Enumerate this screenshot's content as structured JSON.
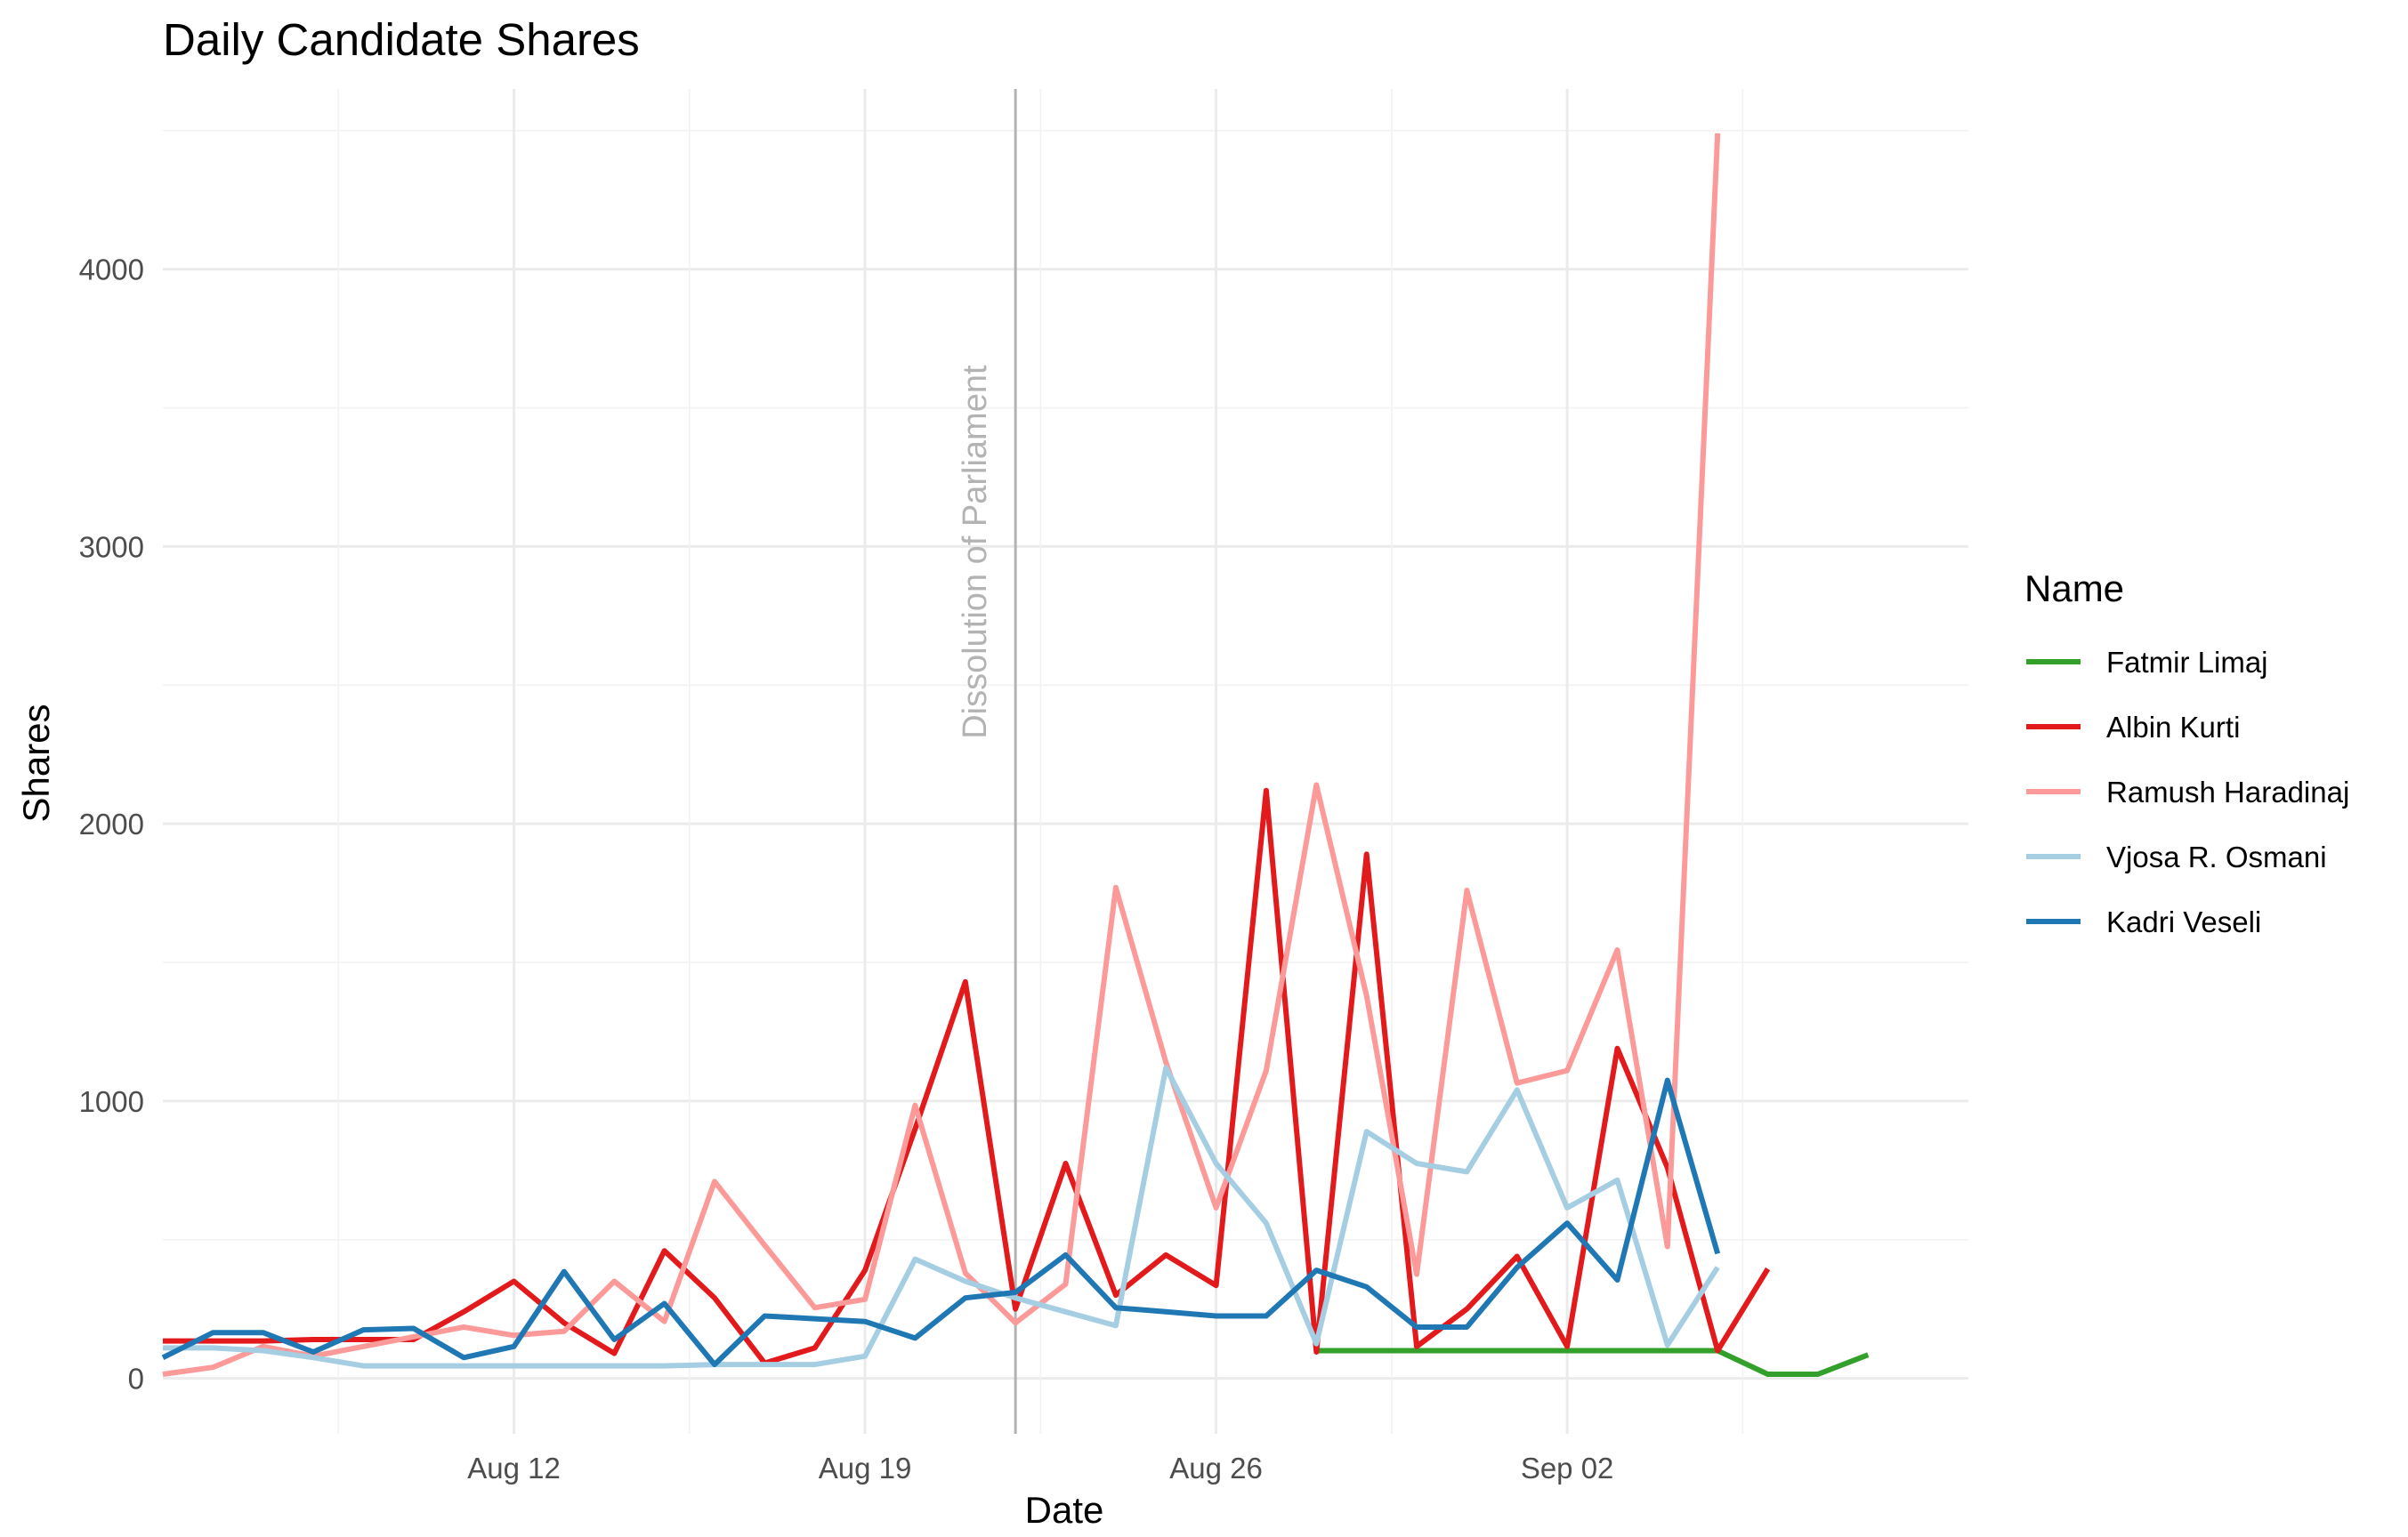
{
  "chart_data": {
    "type": "line",
    "title": "Daily Candidate Shares",
    "xlabel": "Date",
    "ylabel": "Shares",
    "legend_title": "Name",
    "legend_position": "right",
    "grid": true,
    "x_axis": {
      "type": "date",
      "range": [
        "2019-08-05",
        "2019-09-10"
      ],
      "ticks": [
        {
          "date": "2019-08-12",
          "label": "Aug 12"
        },
        {
          "date": "2019-08-19",
          "label": "Aug 19"
        },
        {
          "date": "2019-08-26",
          "label": "Aug 26"
        },
        {
          "date": "2019-09-02",
          "label": "Sep 02"
        }
      ]
    },
    "y_axis": {
      "range": [
        -200,
        4650
      ],
      "ticks": [
        0,
        1000,
        2000,
        3000,
        4000
      ]
    },
    "annotations": [
      {
        "type": "vline",
        "date": "2019-08-22",
        "label": "Dissolution of Parliament",
        "color": "#b3b3b3"
      }
    ],
    "series": [
      {
        "name": "Fatmir Limaj",
        "color": "#33a02c",
        "points": [
          [
            "2019-08-28",
            100
          ],
          [
            "2019-08-29",
            100
          ],
          [
            "2019-08-30",
            100
          ],
          [
            "2019-08-31",
            100
          ],
          [
            "2019-09-01",
            100
          ],
          [
            "2019-09-02",
            100
          ],
          [
            "2019-09-03",
            100
          ],
          [
            "2019-09-04",
            100
          ],
          [
            "2019-09-05",
            100
          ],
          [
            "2019-09-06",
            15
          ],
          [
            "2019-09-07",
            15
          ],
          [
            "2019-09-08",
            85
          ]
        ]
      },
      {
        "name": "Albin Kurti",
        "color": "#e31a1c",
        "points": [
          [
            "2019-08-05",
            135
          ],
          [
            "2019-08-06",
            135
          ],
          [
            "2019-08-07",
            135
          ],
          [
            "2019-08-08",
            140
          ],
          [
            "2019-08-09",
            140
          ],
          [
            "2019-08-10",
            140
          ],
          [
            "2019-08-11",
            240
          ],
          [
            "2019-08-12",
            350
          ],
          [
            "2019-08-13",
            200
          ],
          [
            "2019-08-14",
            90
          ],
          [
            "2019-08-15",
            460
          ],
          [
            "2019-08-16",
            290
          ],
          [
            "2019-08-17",
            55
          ],
          [
            "2019-08-18",
            110
          ],
          [
            "2019-08-19",
            390
          ],
          [
            "2019-08-20",
            900
          ],
          [
            "2019-08-21",
            1430
          ],
          [
            "2019-08-22",
            250
          ],
          [
            "2019-08-23",
            775
          ],
          [
            "2019-08-24",
            300
          ],
          [
            "2019-08-25",
            445
          ],
          [
            "2019-08-26",
            335
          ],
          [
            "2019-08-27",
            2120
          ],
          [
            "2019-08-28",
            95
          ],
          [
            "2019-08-29",
            1890
          ],
          [
            "2019-08-30",
            115
          ],
          [
            "2019-08-31",
            250
          ],
          [
            "2019-09-01",
            440
          ],
          [
            "2019-09-02",
            115
          ],
          [
            "2019-09-03",
            1190
          ],
          [
            "2019-09-04",
            760
          ],
          [
            "2019-09-05",
            100
          ],
          [
            "2019-09-06",
            395
          ]
        ]
      },
      {
        "name": "Ramush Haradinaj",
        "color": "#fb9a99",
        "points": [
          [
            "2019-08-05",
            15
          ],
          [
            "2019-08-06",
            40
          ],
          [
            "2019-08-07",
            115
          ],
          [
            "2019-08-08",
            80
          ],
          [
            "2019-08-09",
            115
          ],
          [
            "2019-08-10",
            150
          ],
          [
            "2019-08-11",
            185
          ],
          [
            "2019-08-12",
            155
          ],
          [
            "2019-08-13",
            170
          ],
          [
            "2019-08-14",
            350
          ],
          [
            "2019-08-15",
            205
          ],
          [
            "2019-08-16",
            710
          ],
          [
            "2019-08-17",
            480
          ],
          [
            "2019-08-18",
            255
          ],
          [
            "2019-08-19",
            285
          ],
          [
            "2019-08-20",
            985
          ],
          [
            "2019-08-21",
            380
          ],
          [
            "2019-08-22",
            200
          ],
          [
            "2019-08-23",
            340
          ],
          [
            "2019-08-24",
            1770
          ],
          [
            "2019-08-25",
            1140
          ],
          [
            "2019-08-26",
            615
          ],
          [
            "2019-08-27",
            1110
          ],
          [
            "2019-08-28",
            2140
          ],
          [
            "2019-08-29",
            1380
          ],
          [
            "2019-08-30",
            375
          ],
          [
            "2019-08-31",
            1760
          ],
          [
            "2019-09-01",
            1065
          ],
          [
            "2019-09-02",
            1110
          ],
          [
            "2019-09-03",
            1545
          ],
          [
            "2019-09-04",
            475
          ],
          [
            "2019-09-05",
            4490
          ]
        ]
      },
      {
        "name": "Vjosa R. Osmani",
        "color": "#a6cee3",
        "points": [
          [
            "2019-08-05",
            110
          ],
          [
            "2019-08-06",
            110
          ],
          [
            "2019-08-07",
            100
          ],
          [
            "2019-08-08",
            75
          ],
          [
            "2019-08-09",
            45
          ],
          [
            "2019-08-10",
            45
          ],
          [
            "2019-08-11",
            45
          ],
          [
            "2019-08-12",
            45
          ],
          [
            "2019-08-13",
            45
          ],
          [
            "2019-08-14",
            45
          ],
          [
            "2019-08-15",
            45
          ],
          [
            "2019-08-16",
            50
          ],
          [
            "2019-08-17",
            50
          ],
          [
            "2019-08-18",
            50
          ],
          [
            "2019-08-19",
            80
          ],
          [
            "2019-08-20",
            430
          ],
          [
            "2019-08-21",
            350
          ],
          [
            "2019-08-22",
            290
          ],
          [
            "2019-08-23",
            240
          ],
          [
            "2019-08-24",
            190
          ],
          [
            "2019-08-25",
            1120
          ],
          [
            "2019-08-26",
            775
          ],
          [
            "2019-08-27",
            560
          ],
          [
            "2019-08-28",
            125
          ],
          [
            "2019-08-29",
            890
          ],
          [
            "2019-08-30",
            775
          ],
          [
            "2019-08-31",
            745
          ],
          [
            "2019-09-01",
            1040
          ],
          [
            "2019-09-02",
            615
          ],
          [
            "2019-09-03",
            715
          ],
          [
            "2019-09-04",
            120
          ],
          [
            "2019-09-05",
            400
          ]
        ]
      },
      {
        "name": "Kadri Veseli",
        "color": "#1f78b4",
        "points": [
          [
            "2019-08-05",
            75
          ],
          [
            "2019-08-06",
            165
          ],
          [
            "2019-08-07",
            165
          ],
          [
            "2019-08-08",
            95
          ],
          [
            "2019-08-09",
            175
          ],
          [
            "2019-08-10",
            180
          ],
          [
            "2019-08-11",
            75
          ],
          [
            "2019-08-12",
            115
          ],
          [
            "2019-08-13",
            385
          ],
          [
            "2019-08-14",
            140
          ],
          [
            "2019-08-15",
            270
          ],
          [
            "2019-08-16",
            50
          ],
          [
            "2019-08-17",
            225
          ],
          [
            "2019-08-18",
            215
          ],
          [
            "2019-08-19",
            205
          ],
          [
            "2019-08-20",
            145
          ],
          [
            "2019-08-21",
            290
          ],
          [
            "2019-08-22",
            310
          ],
          [
            "2019-08-23",
            445
          ],
          [
            "2019-08-24",
            255
          ],
          [
            "2019-08-25",
            240
          ],
          [
            "2019-08-26",
            225
          ],
          [
            "2019-08-27",
            225
          ],
          [
            "2019-08-28",
            390
          ],
          [
            "2019-08-29",
            330
          ],
          [
            "2019-08-30",
            185
          ],
          [
            "2019-08-31",
            185
          ],
          [
            "2019-09-01",
            400
          ],
          [
            "2019-09-02",
            560
          ],
          [
            "2019-09-03",
            355
          ],
          [
            "2019-09-04",
            1075
          ],
          [
            "2019-09-05",
            450
          ]
        ]
      }
    ]
  }
}
